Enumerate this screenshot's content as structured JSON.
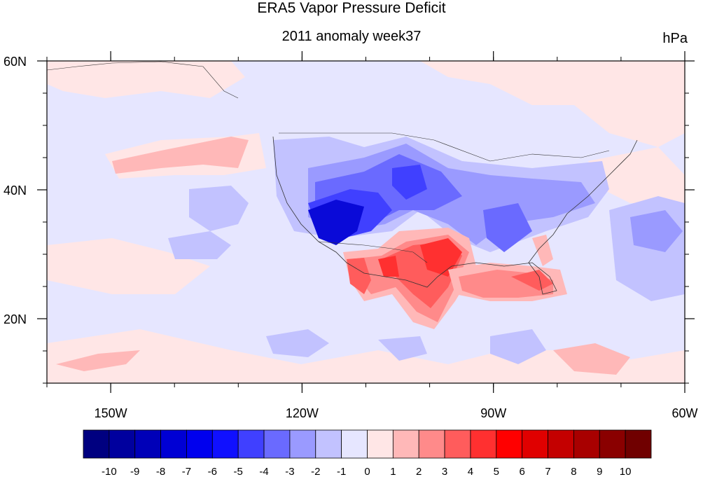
{
  "title": "ERA5 Vapor Pressure Deficit",
  "subtitle": "2011 anomaly week37",
  "units": "hPa",
  "map": {
    "lon_range": [
      -160,
      -60
    ],
    "lat_range": [
      10,
      60
    ],
    "lon_ticks": [
      {
        "lon": -150,
        "label": "150W"
      },
      {
        "lon": -120,
        "label": "120W"
      },
      {
        "lon": -90,
        "label": "90W"
      },
      {
        "lon": -60,
        "label": "60W"
      }
    ],
    "lat_ticks": [
      {
        "lat": 60,
        "label": "60N"
      },
      {
        "lat": 40,
        "label": "40N"
      },
      {
        "lat": 20,
        "label": "20N"
      }
    ],
    "background_anomaly_color": "#e6e6ff"
  },
  "colorbar": {
    "labels": [
      "-10",
      "-9",
      "-8",
      "-7",
      "-6",
      "-5",
      "-4",
      "-3",
      "-2",
      "-1",
      "0",
      "1",
      "2",
      "3",
      "4",
      "5",
      "6",
      "7",
      "8",
      "9",
      "10"
    ],
    "colors": [
      "#000080",
      "#00009e",
      "#0000b8",
      "#0000d4",
      "#0000ee",
      "#1010ff",
      "#4040ff",
      "#6a6aff",
      "#9a9aff",
      "#c2c2ff",
      "#e6e6ff",
      "#ffe6e6",
      "#ffb8b8",
      "#ff8a8a",
      "#ff5c5c",
      "#ff3030",
      "#ff0000",
      "#e00000",
      "#c40000",
      "#a80000",
      "#8a0000",
      "#700000"
    ]
  },
  "anomaly_regions": [
    {
      "name": "southwest-strong-dry-low-vpd",
      "color": "#0a0ad8"
    },
    {
      "name": "texas-high-vpd",
      "color": "#ff3030"
    },
    {
      "name": "gulf-high-vpd",
      "color": "#ff8a8a"
    }
  ]
}
